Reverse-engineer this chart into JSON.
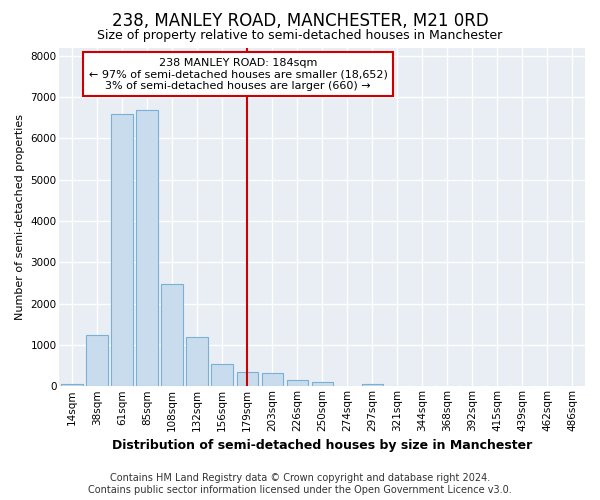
{
  "title": "238, MANLEY ROAD, MANCHESTER, M21 0RD",
  "subtitle": "Size of property relative to semi-detached houses in Manchester",
  "xlabel": "Distribution of semi-detached houses by size in Manchester",
  "ylabel": "Number of semi-detached properties",
  "footer1": "Contains HM Land Registry data © Crown copyright and database right 2024.",
  "footer2": "Contains public sector information licensed under the Open Government Licence v3.0.",
  "annotation_line1": "238 MANLEY ROAD: 184sqm",
  "annotation_line2": "← 97% of semi-detached houses are smaller (18,652)",
  "annotation_line3": "3% of semi-detached houses are larger (660) →",
  "bar_color": "#c8dcee",
  "bar_edge_color": "#7ab0d4",
  "plot_bg_color": "#e8eef4",
  "fig_bg_color": "#ffffff",
  "grid_color": "#ffffff",
  "categories": [
    "14sqm",
    "38sqm",
    "61sqm",
    "85sqm",
    "108sqm",
    "132sqm",
    "156sqm",
    "179sqm",
    "203sqm",
    "226sqm",
    "250sqm",
    "274sqm",
    "297sqm",
    "321sqm",
    "344sqm",
    "368sqm",
    "392sqm",
    "415sqm",
    "439sqm",
    "462sqm",
    "486sqm"
  ],
  "values": [
    60,
    1230,
    6600,
    6680,
    2480,
    1200,
    530,
    350,
    330,
    155,
    100,
    0,
    60,
    0,
    0,
    0,
    0,
    0,
    0,
    0,
    0
  ],
  "ylim": [
    0,
    8200
  ],
  "yticks": [
    0,
    1000,
    2000,
    3000,
    4000,
    5000,
    6000,
    7000,
    8000
  ],
  "property_line_index": 7,
  "red_line_color": "#cc0000",
  "annotation_box_edge_color": "#cc0000",
  "annotation_box_bg": "#ffffff",
  "title_fontsize": 12,
  "subtitle_fontsize": 9,
  "ylabel_fontsize": 8,
  "xlabel_fontsize": 9,
  "tick_fontsize": 7.5,
  "footer_fontsize": 7,
  "annot_fontsize": 8
}
